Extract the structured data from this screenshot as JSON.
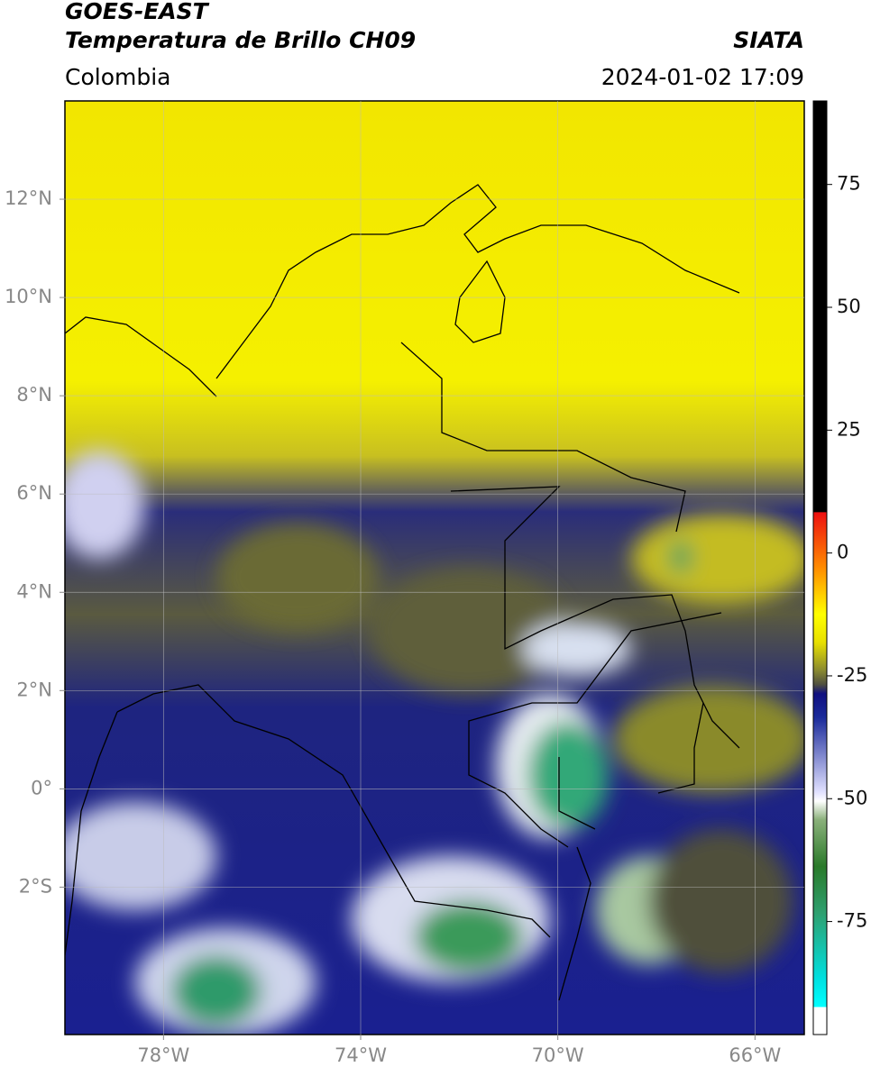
{
  "header": {
    "title": "GOES-EAST",
    "subtitle": "Temperatura de Brillo CH09",
    "source": "SIATA",
    "region": "Colombia",
    "datetime": "2024-01-02 17:09"
  },
  "map": {
    "xlim": [
      -80,
      -65
    ],
    "ylim": [
      -5,
      14
    ],
    "xticks": [
      {
        "value": -78,
        "label": "78°W"
      },
      {
        "value": -74,
        "label": "74°W"
      },
      {
        "value": -70,
        "label": "70°W"
      },
      {
        "value": -66,
        "label": "66°W"
      }
    ],
    "yticks": [
      {
        "value": 12,
        "label": "12°N"
      },
      {
        "value": 10,
        "label": "10°N"
      },
      {
        "value": 8,
        "label": "8°N"
      },
      {
        "value": 6,
        "label": "6°N"
      },
      {
        "value": 4,
        "label": "4°N"
      },
      {
        "value": 2,
        "label": "2°N"
      },
      {
        "value": 0,
        "label": "0°"
      },
      {
        "value": -2,
        "label": "2°S"
      }
    ],
    "grid": true
  },
  "colorbar": {
    "lim": [
      -98,
      92
    ],
    "ticks": [
      75,
      50,
      25,
      0,
      -25,
      -50,
      -75
    ]
  }
}
